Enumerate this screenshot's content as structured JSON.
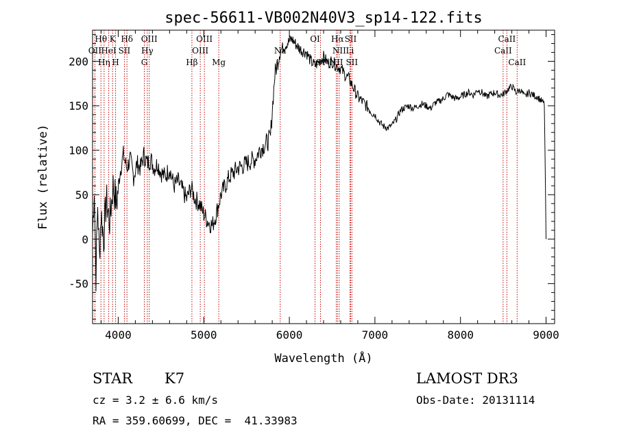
{
  "chart_data": {
    "type": "line",
    "title": "spec-56611-VB002N40V3_sp14-122.fits",
    "xlabel": "Wavelength (Å)",
    "ylabel": "Flux (relative)",
    "xlim": [
      3700,
      9100
    ],
    "ylim": [
      -95,
      235
    ],
    "xticks": [
      4000,
      5000,
      6000,
      7000,
      8000,
      9000
    ],
    "yticks": [
      -50,
      0,
      50,
      100,
      150,
      200
    ],
    "grid": false,
    "series": [
      {
        "color": "#000000",
        "x": [
          3700,
          3720,
          3740,
          3760,
          3780,
          3800,
          3830,
          3860,
          3900,
          3940,
          3980,
          4020,
          4060,
          4100,
          4140,
          4180,
          4220,
          4260,
          4300,
          4340,
          4380,
          4420,
          4460,
          4500,
          4550,
          4600,
          4650,
          4700,
          4750,
          4800,
          4850,
          4900,
          4950,
          5000,
          5050,
          5100,
          5150,
          5200,
          5250,
          5300,
          5350,
          5400,
          5450,
          5500,
          5550,
          5600,
          5650,
          5700,
          5750,
          5780,
          5800,
          5830,
          5860,
          5890,
          5920,
          5950,
          5990,
          6030,
          6070,
          6110,
          6150,
          6200,
          6250,
          6300,
          6350,
          6400,
          6450,
          6500,
          6550,
          6600,
          6650,
          6700,
          6750,
          6800,
          6850,
          6900,
          6950,
          7000,
          7050,
          7100,
          7150,
          7200,
          7250,
          7300,
          7350,
          7400,
          7450,
          7500,
          7550,
          7600,
          7650,
          7700,
          7750,
          7800,
          7850,
          7900,
          7950,
          8000,
          8050,
          8100,
          8150,
          8200,
          8250,
          8300,
          8350,
          8400,
          8450,
          8500,
          8550,
          8600,
          8650,
          8700,
          8750,
          8800,
          8850,
          8900,
          8950,
          8980,
          9000
        ],
        "y": [
          5,
          60,
          -40,
          40,
          -20,
          30,
          0,
          45,
          20,
          60,
          40,
          75,
          95,
          80,
          90,
          70,
          85,
          80,
          95,
          85,
          90,
          80,
          85,
          75,
          70,
          80,
          60,
          65,
          55,
          45,
          58,
          45,
          40,
          28,
          20,
          15,
          30,
          50,
          60,
          70,
          75,
          80,
          82,
          85,
          88,
          90,
          100,
          105,
          110,
          115,
          145,
          185,
          198,
          212,
          215,
          218,
          222,
          225,
          220,
          215,
          212,
          210,
          200,
          195,
          200,
          205,
          198,
          200,
          195,
          192,
          185,
          180,
          170,
          160,
          155,
          150,
          145,
          140,
          132,
          127,
          125,
          128,
          135,
          145,
          148,
          150,
          147,
          150,
          152,
          150,
          147,
          153,
          155,
          158,
          163,
          160,
          158,
          160,
          163,
          165,
          162,
          168,
          165,
          160,
          163,
          165,
          162,
          163,
          168,
          172,
          165,
          168,
          160,
          165,
          162,
          160,
          155,
          152,
          0
        ]
      }
    ],
    "line_markers": [
      {
        "label": "Hθ",
        "x": 3798,
        "row": 0
      },
      {
        "label": "OII",
        "x": 3727,
        "row": 1
      },
      {
        "label": "HeI",
        "x": 3889,
        "row": 1
      },
      {
        "label": "K",
        "x": 3934,
        "row": 0
      },
      {
        "label": "H",
        "x": 3969,
        "row": 2
      },
      {
        "label": "Hη",
        "x": 3835,
        "row": 2
      },
      {
        "label": "SII",
        "x": 4072,
        "row": 1
      },
      {
        "label": "Hδ",
        "x": 4102,
        "row": 0
      },
      {
        "label": "Hγ",
        "x": 4340,
        "row": 1
      },
      {
        "label": "G",
        "x": 4305,
        "row": 2
      },
      {
        "label": "OIII",
        "x": 4363,
        "row": 0
      },
      {
        "label": "Hβ",
        "x": 4861,
        "row": 2
      },
      {
        "label": "OIII",
        "x": 4959,
        "row": 1
      },
      {
        "label": "OIII",
        "x": 5007,
        "row": 0
      },
      {
        "label": "Mg",
        "x": 5175,
        "row": 2
      },
      {
        "label": "Na",
        "x": 5893,
        "row": 1
      },
      {
        "label": "OI",
        "x": 6300,
        "row": 0
      },
      {
        "label": "OI",
        "x": 6364,
        "row": 2
      },
      {
        "label": "NII",
        "x": 6548,
        "row": 2
      },
      {
        "label": "Hα",
        "x": 6563,
        "row": 0
      },
      {
        "label": "NII",
        "x": 6583,
        "row": 1
      },
      {
        "label": "Li",
        "x": 6708,
        "row": 1
      },
      {
        "label": "SII",
        "x": 6716,
        "row": 0
      },
      {
        "label": "SII",
        "x": 6731,
        "row": 2
      },
      {
        "label": "CaII",
        "x": 8498,
        "row": 1
      },
      {
        "label": "CaII",
        "x": 8542,
        "row": 0
      },
      {
        "label": "CaII",
        "x": 8662,
        "row": 2
      }
    ]
  },
  "info": {
    "class": "STAR",
    "subclass": "K7",
    "survey": "LAMOST DR3",
    "cz": "cz = 3.2 ± 6.6 km/s",
    "obsdate": "Obs-Date: 20131114",
    "radec": "RA = 359.60699, DEC =  41.33983"
  },
  "colors": {
    "spectrum": "#000000",
    "line_markers": "#c00000"
  }
}
